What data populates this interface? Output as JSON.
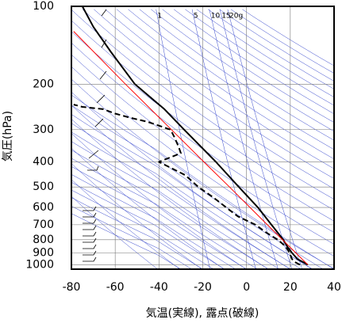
{
  "chart_data": {
    "type": "emagram",
    "xlabel": "気温(実線), 露点(破線)",
    "ylabel": "気圧(hPa)",
    "xlim": [
      -80,
      40
    ],
    "xticks": [
      -80,
      -60,
      -40,
      -20,
      0,
      20,
      40
    ],
    "ylim": [
      1040,
      100
    ],
    "ylog": true,
    "yticks": [
      100,
      200,
      300,
      400,
      500,
      600,
      700,
      800,
      900,
      1000
    ],
    "grid": true,
    "mixing_ratio_lines": [
      1,
      5,
      10,
      15,
      {
        "value": 20,
        "label": "20g"
      }
    ],
    "series": [
      {
        "color": "#000000",
        "style": "solid",
        "width": 2,
        "pressure": [
          1000,
          950,
          900,
          850,
          800,
          700,
          600,
          500,
          400,
          300,
          250,
          200,
          150,
          120,
          100
        ],
        "values": [
          28,
          23.3,
          20.8,
          18.6,
          16.8,
          11.4,
          5.2,
          -3.5,
          -14,
          -28.5,
          -37.5,
          -51,
          -62,
          -70,
          -75
        ]
      },
      {
        "color": "#000000",
        "style": "dashed",
        "width": 2,
        "pressure": [
          1000,
          975,
          950,
          900,
          850,
          800,
          750,
          700,
          650,
          600,
          550,
          500,
          450,
          400,
          370,
          350,
          320,
          300,
          280,
          270,
          260,
          250,
          245,
          240
        ],
        "values": [
          24.4,
          22,
          20.8,
          19.7,
          17.9,
          14.3,
          9,
          4.1,
          -3.9,
          -9.3,
          -15,
          -22,
          -28,
          -40,
          -30,
          -31,
          -33,
          -34.7,
          -45,
          -53,
          -60,
          -65.5,
          -75,
          -79
        ]
      },
      {
        "color": "#ff0000",
        "style": "solid",
        "width": 1,
        "pressure": [
          1000,
          700,
          500,
          400,
          300,
          200,
          125
        ],
        "values": [
          28,
          9.5,
          -7.8,
          -19.5,
          -34.3,
          -55.3,
          -79
        ]
      }
    ]
  }
}
